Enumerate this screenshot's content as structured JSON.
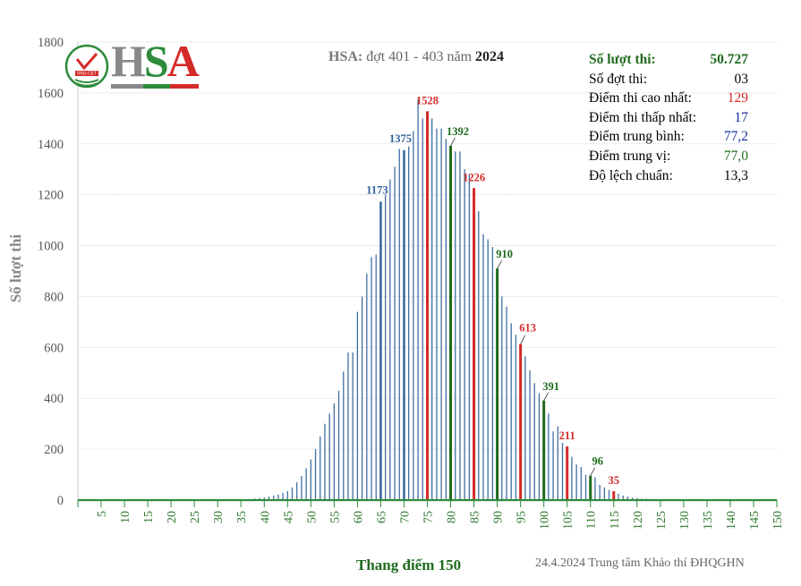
{
  "header": {
    "hsa": "HSA:",
    "subtitle_mid": " đợt 401  - 403  năm ",
    "year": "2024",
    "logo_text": "HSA",
    "logo_badge": "VNU-CET"
  },
  "stats": {
    "attempts_label": "Số lượt thi:",
    "attempts_value": "50.727",
    "rounds_label": "Số đợt thi:",
    "rounds_value": "03",
    "max_label": "Điểm thi cao nhất:",
    "max_value": "129",
    "min_label": "Điểm thi thấp nhất:",
    "min_value": "17",
    "mean_label": "Điểm trung bình:",
    "mean_value": "77,2",
    "median_label": "Điểm trung vị:",
    "median_value": "77,0",
    "std_label": "Độ lệch chuẩn:",
    "std_value": "13,3"
  },
  "footer": "24.4.2024 Trung tâm Khảo thí ĐHQGHN",
  "colors": {
    "bar": "#3f6fa3",
    "blue_highlight": "#2e5f98",
    "red": "#d42a2a",
    "green": "#1e6b1e",
    "stats_head": "#1f6b1f",
    "stats_red": "#d42a2a",
    "stats_blue": "#1a2f9a",
    "stats_green": "#1f6b1f",
    "logo_grey": "#888888",
    "logo_green": "#2e8b3a",
    "logo_red": "#d42a2a"
  },
  "chart_data": {
    "type": "bar",
    "title": "HSA: đợt 401 - 403 năm 2024",
    "xlabel": "Thang điểm 150",
    "ylabel": "Số lượt thi",
    "ylim": [
      0,
      1800
    ],
    "yticks": [
      0,
      200,
      400,
      600,
      800,
      1000,
      1200,
      1400,
      1600,
      1800
    ],
    "xlim": [
      0,
      150
    ],
    "xticks": [
      5,
      10,
      15,
      20,
      25,
      30,
      35,
      40,
      45,
      50,
      55,
      60,
      65,
      70,
      75,
      80,
      85,
      90,
      95,
      100,
      105,
      110,
      115,
      120,
      125,
      130,
      135,
      140,
      145,
      150
    ],
    "grid": true,
    "scores": [
      35,
      36,
      37,
      38,
      39,
      40,
      41,
      42,
      43,
      44,
      45,
      46,
      47,
      48,
      49,
      50,
      51,
      52,
      53,
      54,
      55,
      56,
      57,
      58,
      59,
      60,
      61,
      62,
      63,
      64,
      65,
      66,
      67,
      68,
      69,
      70,
      71,
      72,
      73,
      74,
      75,
      76,
      77,
      78,
      79,
      80,
      81,
      82,
      83,
      84,
      85,
      86,
      87,
      88,
      89,
      90,
      91,
      92,
      93,
      94,
      95,
      96,
      97,
      98,
      99,
      100,
      101,
      102,
      103,
      104,
      105,
      106,
      107,
      108,
      109,
      110,
      111,
      112,
      113,
      114,
      115,
      116,
      117,
      118,
      119,
      120,
      121,
      122,
      123,
      124,
      125,
      126,
      127,
      128,
      129
    ],
    "counts": [
      1,
      2,
      4,
      6,
      8,
      10,
      14,
      18,
      22,
      28,
      35,
      50,
      70,
      95,
      125,
      160,
      200,
      250,
      300,
      340,
      380,
      430,
      505,
      580,
      580,
      740,
      800,
      890,
      955,
      965,
      1173,
      1200,
      1260,
      1310,
      1380,
      1375,
      1390,
      1450,
      1575,
      1500,
      1528,
      1500,
      1460,
      1460,
      1420,
      1392,
      1370,
      1370,
      1300,
      1280,
      1226,
      1135,
      1045,
      1025,
      995,
      910,
      800,
      760,
      695,
      650,
      613,
      565,
      510,
      460,
      420,
      391,
      340,
      270,
      290,
      225,
      211,
      170,
      140,
      130,
      100,
      96,
      90,
      60,
      50,
      40,
      35,
      25,
      18,
      14,
      10,
      8,
      6,
      5,
      4,
      3,
      2,
      2,
      1,
      1,
      1
    ],
    "labels": [
      {
        "score": 65,
        "value": 1173,
        "text": "1173",
        "color": "blue"
      },
      {
        "score": 70,
        "value": 1375,
        "text": "1375",
        "color": "blue"
      },
      {
        "score": 75,
        "value": 1528,
        "text": "1528",
        "color": "red"
      },
      {
        "score": 80,
        "value": 1392,
        "text": "1392",
        "color": "green"
      },
      {
        "score": 85,
        "value": 1226,
        "text": "1226",
        "color": "red"
      },
      {
        "score": 90,
        "value": 910,
        "text": "910",
        "color": "green"
      },
      {
        "score": 95,
        "value": 613,
        "text": "613",
        "color": "red"
      },
      {
        "score": 100,
        "value": 391,
        "text": "391",
        "color": "green"
      },
      {
        "score": 105,
        "value": 211,
        "text": "211",
        "color": "red"
      },
      {
        "score": 110,
        "value": 96,
        "text": "96",
        "color": "green"
      },
      {
        "score": 115,
        "value": 35,
        "text": "35",
        "color": "red"
      }
    ],
    "highlight": {
      "blue": [
        65,
        70
      ],
      "red": [
        75,
        85,
        95,
        105,
        115
      ],
      "green": [
        80,
        90,
        100,
        110
      ]
    }
  }
}
